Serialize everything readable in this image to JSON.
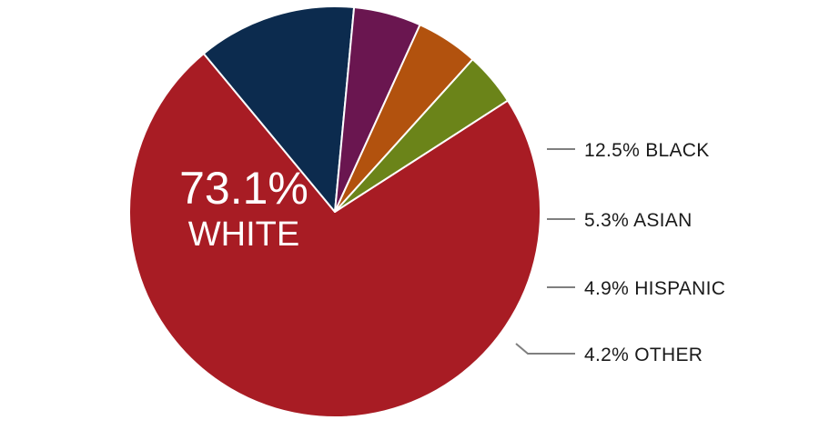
{
  "chart_data": {
    "type": "pie",
    "title": "",
    "slices": [
      {
        "label": "WHITE",
        "value": 73.1,
        "value_text": "73.1%",
        "color": "#A81C24",
        "label_position": "inside"
      },
      {
        "label": "BLACK",
        "value": 12.5,
        "value_text": "12.5%",
        "color": "#0C2B4E",
        "label_position": "outside"
      },
      {
        "label": "ASIAN",
        "value": 5.3,
        "value_text": "5.3%",
        "color": "#6A1650",
        "label_position": "outside"
      },
      {
        "label": "HISPANIC",
        "value": 4.9,
        "value_text": "4.9%",
        "color": "#B2520E",
        "label_position": "outside"
      },
      {
        "label": "OTHER",
        "value": 4.2,
        "value_text": "4.2%",
        "color": "#6B8419",
        "label_position": "outside"
      }
    ],
    "leader_line_color": "#7f7f7f"
  }
}
